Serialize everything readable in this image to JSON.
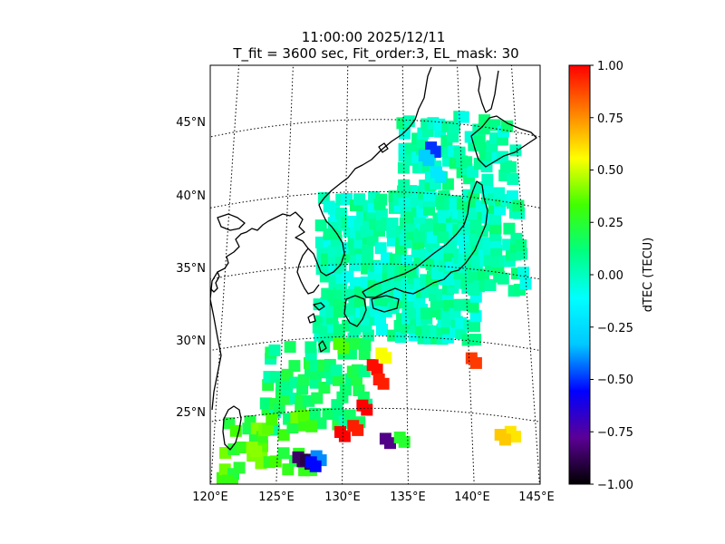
{
  "title": {
    "line1": "11:00:00 2025/12/11",
    "line2": "T_fit = 3600 sec, Fit_order:3, EL_mask: 30"
  },
  "map": {
    "lon_range": [
      120,
      145
    ],
    "lat_range": [
      20,
      49
    ],
    "lon_ticks": [
      "120°E",
      "125°E",
      "130°E",
      "135°E",
      "140°E",
      "145°E"
    ],
    "lat_ticks": [
      "25°N",
      "30°N",
      "35°N",
      "40°N",
      "45°N"
    ],
    "graticule": "dotted"
  },
  "colorbar": {
    "label": "dTEC (TECU)",
    "range": [
      -1.0,
      1.0
    ],
    "ticks": [
      "1.00",
      "0.75",
      "0.50",
      "0.25",
      "0.00",
      "−0.25",
      "−0.50",
      "−0.75",
      "−1.00"
    ],
    "colormap": [
      "#000000",
      "#5b0096",
      "#0000ff",
      "#00c8ff",
      "#00ffff",
      "#00ff80",
      "#40ff00",
      "#ffff00",
      "#ff8000",
      "#ff0000"
    ]
  },
  "dtec_regions": [
    {
      "lon": [
        128,
        141
      ],
      "lat": [
        30,
        40
      ],
      "value": 0.02,
      "density": 0.75
    },
    {
      "lon": [
        135,
        145
      ],
      "lat": [
        34,
        46
      ],
      "value": 0.03,
      "density": 0.55
    },
    {
      "lon": [
        124,
        132
      ],
      "lat": [
        24,
        30
      ],
      "value": 0.12,
      "density": 0.55
    },
    {
      "lon": [
        121,
        128
      ],
      "lat": [
        21,
        25
      ],
      "value": 0.3,
      "density": 0.35
    }
  ],
  "dtec_points": [
    {
      "lon": 132.3,
      "lat": 28.0,
      "value": 0.98
    },
    {
      "lon": 132.8,
      "lat": 27.0,
      "value": 0.95
    },
    {
      "lon": 131.5,
      "lat": 25.2,
      "value": 1.0
    },
    {
      "lon": 129.8,
      "lat": 23.4,
      "value": 1.0
    },
    {
      "lon": 130.8,
      "lat": 23.8,
      "value": 0.95
    },
    {
      "lon": 140.2,
      "lat": 28.8,
      "value": 0.9
    },
    {
      "lon": 143.0,
      "lat": 24.0,
      "value": 0.6
    },
    {
      "lon": 142.2,
      "lat": 23.7,
      "value": 0.65
    },
    {
      "lon": 126.6,
      "lat": 21.8,
      "value": -0.85
    },
    {
      "lon": 127.2,
      "lat": 21.6,
      "value": -0.9
    },
    {
      "lon": 128.0,
      "lat": 21.8,
      "value": -0.4
    },
    {
      "lon": 127.6,
      "lat": 21.4,
      "value": -0.55
    },
    {
      "lon": 133.3,
      "lat": 22.9,
      "value": -0.8
    },
    {
      "lon": 137.4,
      "lat": 43.2,
      "value": -0.5
    },
    {
      "lon": 136.8,
      "lat": 42.6,
      "value": -0.3
    },
    {
      "lon": 137.8,
      "lat": 41.5,
      "value": -0.2
    },
    {
      "lon": 133.0,
      "lat": 28.8,
      "value": 0.55
    },
    {
      "lon": 129.6,
      "lat": 29.5,
      "value": 0.35
    },
    {
      "lon": 123.0,
      "lat": 22.8,
      "value": 0.42
    },
    {
      "lon": 121.3,
      "lat": 20.7,
      "value": 0.3
    },
    {
      "lon": 134.4,
      "lat": 23.0,
      "value": 0.25
    }
  ]
}
